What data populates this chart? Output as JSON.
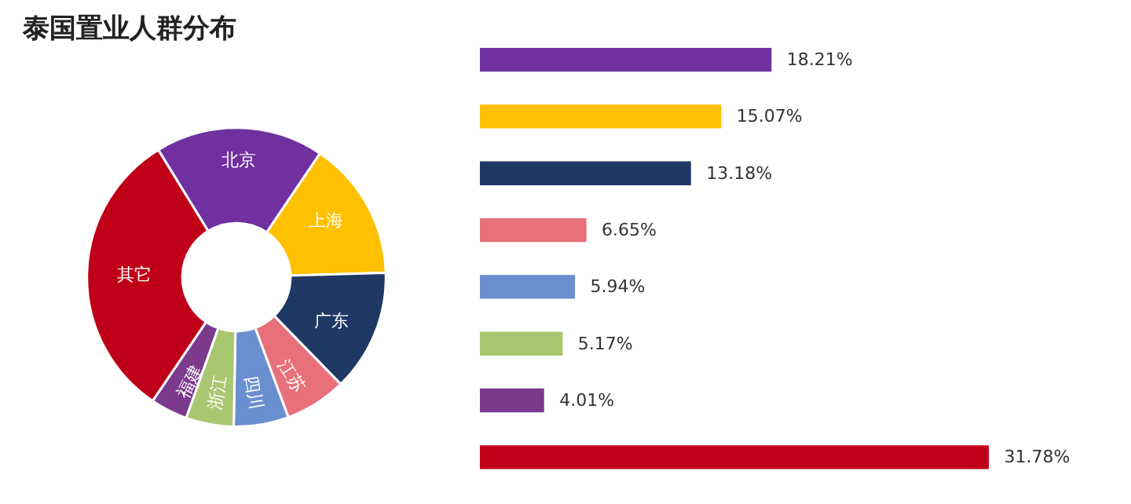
{
  "chart_data": [
    {
      "type": "donut",
      "title": "泰国置业人群分布",
      "categories": [
        "北京",
        "上海",
        "广东",
        "江苏",
        "四川",
        "浙江",
        "福建",
        "其它"
      ],
      "values": [
        18.21,
        15.07,
        13.18,
        6.65,
        5.94,
        5.17,
        4.01,
        31.78
      ],
      "colors": [
        "#7030a0",
        "#ffc000",
        "#1f3864",
        "#e8707a",
        "#6a8fd0",
        "#a9c770",
        "#7b3a8c",
        "#c00018"
      ]
    },
    {
      "type": "bar",
      "orientation": "horizontal",
      "categories": [
        null,
        null,
        null,
        null,
        null,
        null,
        null,
        null
      ],
      "values": [
        18.21,
        15.07,
        13.18,
        6.65,
        5.94,
        5.17,
        4.01,
        31.78
      ],
      "value_labels": [
        "18.21%",
        "15.07%",
        "13.18%",
        "6.65%",
        "5.94%",
        "5.17%",
        "4.01%",
        "31.78%"
      ],
      "colors": [
        "#7030a0",
        "#ffc000",
        "#1f3864",
        "#e8707a",
        "#6a8fd0",
        "#a9c770",
        "#7b3a8c",
        "#c00018"
      ]
    }
  ]
}
